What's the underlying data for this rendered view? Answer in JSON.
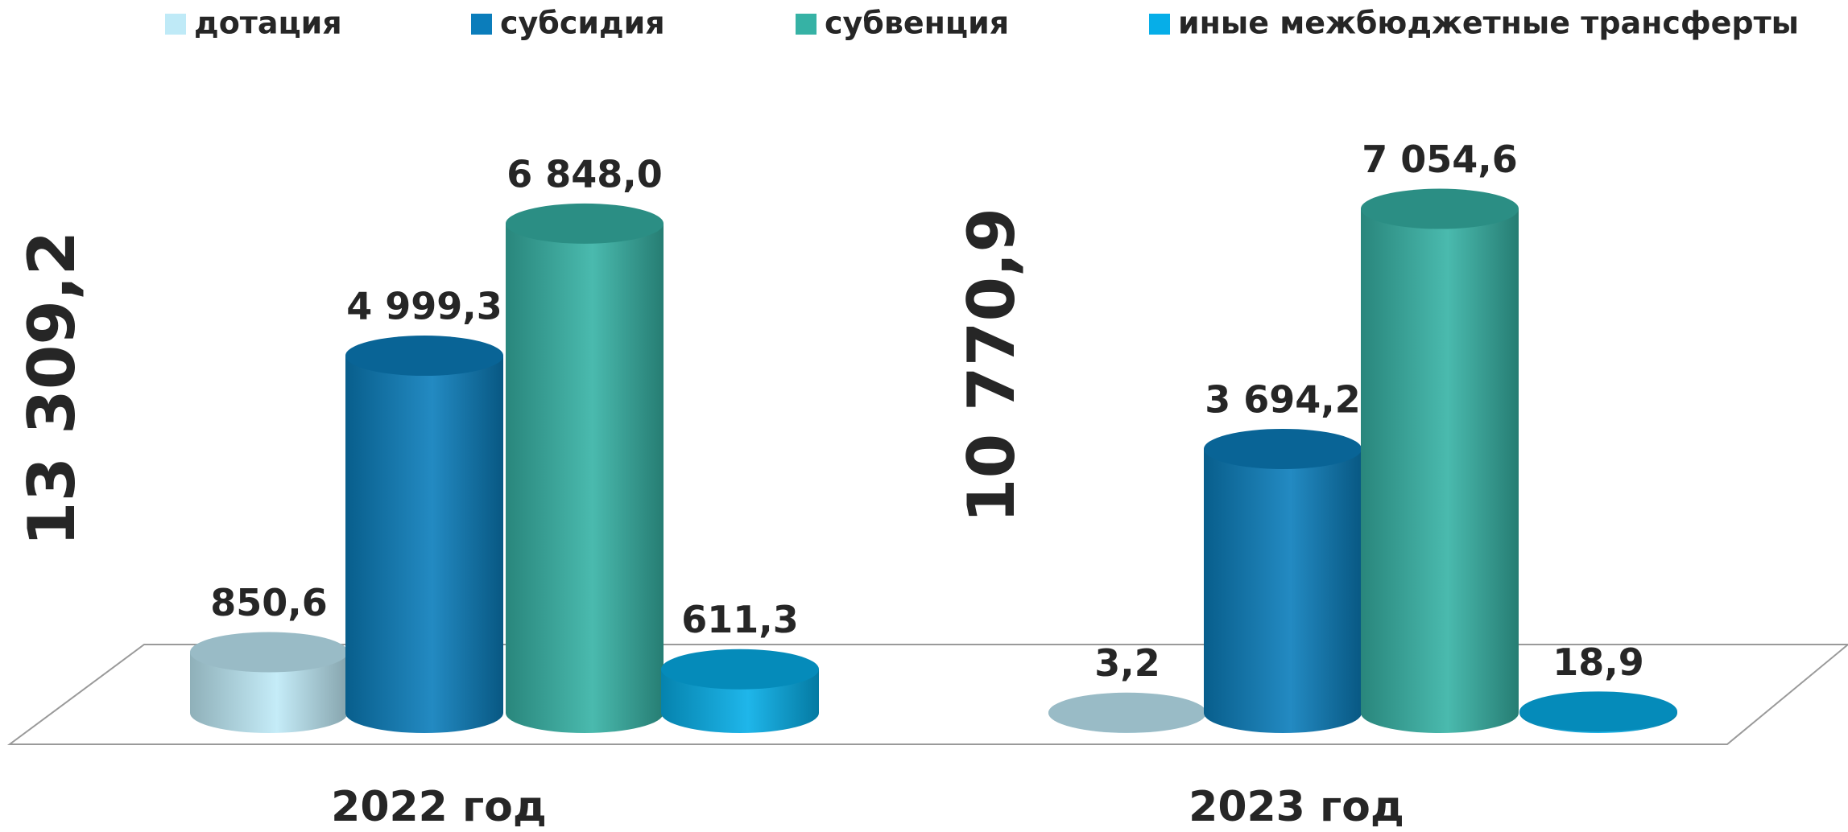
{
  "chart_data": {
    "type": "cylinder-bar",
    "categories": [
      "2022 год",
      "2023 год"
    ],
    "totals": [
      13309.2,
      10770.9
    ],
    "total_labels": [
      "13 309,2",
      "10 770,9"
    ],
    "series": [
      {
        "name": "дотация",
        "color": "#bfeaf7",
        "values": [
          850.6,
          3.2
        ],
        "value_labels": [
          "850,6",
          "3,2"
        ]
      },
      {
        "name": "субсидия",
        "color": "#0b7dbb",
        "values": [
          4999.3,
          3694.2
        ],
        "value_labels": [
          "4 999,3",
          "3 694,2"
        ]
      },
      {
        "name": "субвенция",
        "color": "#36b2a5",
        "values": [
          6848.0,
          7054.6
        ],
        "value_labels": [
          "6 848,0",
          "7 054,6"
        ]
      },
      {
        "name": "иные межбюджетные трансферты",
        "color": "#06aee8",
        "values": [
          611.3,
          18.9
        ],
        "value_labels": [
          "611,3",
          "18,9"
        ]
      }
    ],
    "legend": "top"
  }
}
